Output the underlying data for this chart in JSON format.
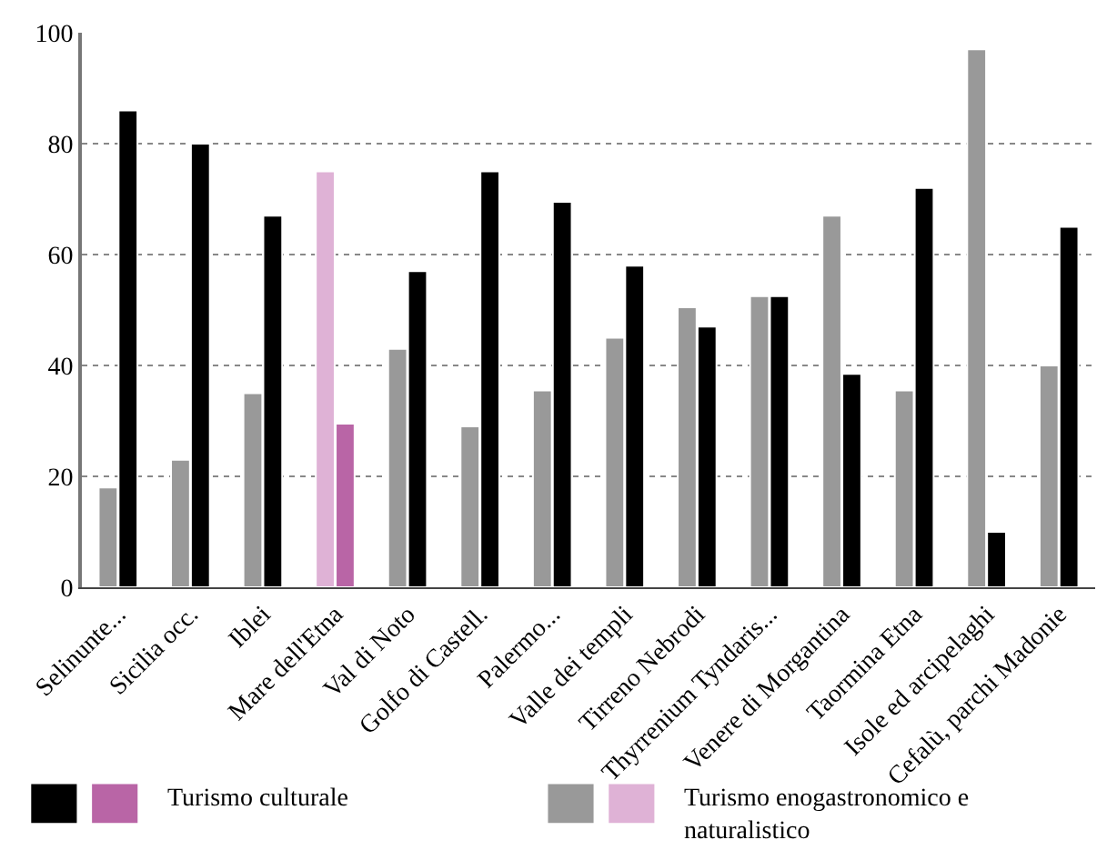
{
  "chart_data": {
    "type": "bar",
    "categories": [
      "Selinunte...",
      "Sicilia occ.",
      "Iblei",
      "Mare dell'Etna",
      "Val di Noto",
      "Golfo di Castell.",
      "Palermo...",
      "Valle dei templi",
      "Tirreno Nebrodi",
      "Thyrrenium Tyndaris...",
      "Venere di Morgantina",
      "Taormina Etna",
      "Isole ed arcipelaghi",
      "Cefalù, parchi Madonie"
    ],
    "series": [
      {
        "name": "Turismo enogastronomico e naturalistico",
        "color": "#999999",
        "colors": [
          "#999999",
          "#999999",
          "#999999",
          "#dfb2d6",
          "#999999",
          "#999999",
          "#999999",
          "#999999",
          "#999999",
          "#999999",
          "#999999",
          "#999999",
          "#999999",
          "#999999"
        ],
        "values": [
          18,
          23,
          35,
          75,
          43,
          29,
          35.5,
          45,
          50.5,
          52.5,
          67,
          35.5,
          97,
          40
        ]
      },
      {
        "name": "Turismo culturale",
        "color": "#000000",
        "colors": [
          "#000000",
          "#000000",
          "#000000",
          "#b965a6",
          "#000000",
          "#000000",
          "#000000",
          "#000000",
          "#000000",
          "#000000",
          "#000000",
          "#000000",
          "#000000",
          "#000000"
        ],
        "values": [
          86,
          80,
          67,
          29.5,
          57,
          75,
          69.5,
          58,
          47,
          52.5,
          38.5,
          72,
          10,
          65
        ]
      }
    ],
    "ylim": [
      0,
      100
    ],
    "yticks": [
      0,
      20,
      40,
      60,
      80,
      100
    ],
    "grid": "y",
    "legend": "bottom"
  }
}
